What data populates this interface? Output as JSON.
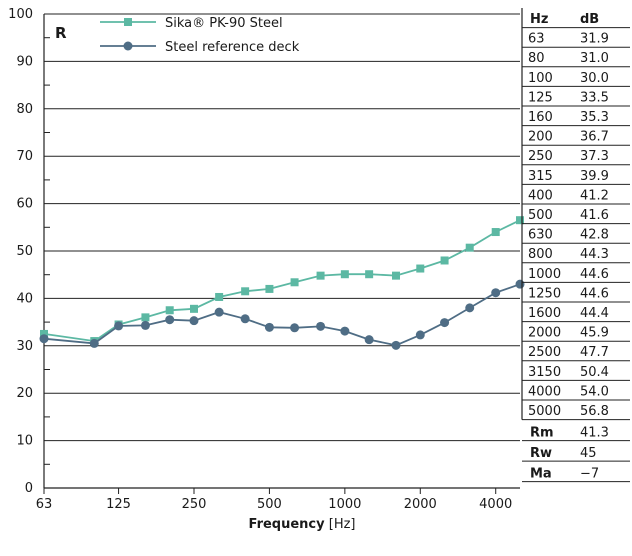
{
  "chart_data": {
    "type": "line",
    "y_axis_label": "R",
    "xlabel_bold": "Frequency",
    "xlabel_unit": " [Hz]",
    "ylim": [
      0,
      100
    ],
    "y_ticks": [
      "0",
      "10",
      "20",
      "30",
      "40",
      "50",
      "60",
      "70",
      "80",
      "90",
      "100"
    ],
    "x_tick_labels": [
      "63",
      "125",
      "250",
      "500",
      "1000",
      "2000",
      "4000"
    ],
    "x": [
      63,
      100,
      125,
      160,
      200,
      250,
      315,
      400,
      500,
      630,
      800,
      1000,
      1250,
      1600,
      2000,
      2500,
      3150,
      4000,
      5000
    ],
    "grid": "horizontal",
    "legend_position": "top-left",
    "series": [
      {
        "name": "Sika® PK-90 Steel",
        "color": "#5cb8a3",
        "marker": "square",
        "values": [
          32.5,
          31.0,
          34.5,
          36.0,
          37.5,
          37.8,
          40.3,
          41.5,
          42.0,
          43.4,
          44.8,
          45.1,
          45.1,
          44.8,
          46.3,
          48.0,
          50.7,
          54.0,
          56.5
        ]
      },
      {
        "name": "Steel reference deck",
        "color": "#4f6d85",
        "marker": "circle",
        "values": [
          31.5,
          30.5,
          34.2,
          34.3,
          35.5,
          35.3,
          37.1,
          35.7,
          33.9,
          33.8,
          34.1,
          33.1,
          31.3,
          30.1,
          32.3,
          34.9,
          38.0,
          41.2,
          43.0
        ]
      }
    ],
    "table": {
      "headers": [
        "Hz",
        "dB"
      ],
      "rows": [
        [
          "63",
          "31.9"
        ],
        [
          "80",
          "31.0"
        ],
        [
          "100",
          "30.0"
        ],
        [
          "125",
          "33.5"
        ],
        [
          "160",
          "35.3"
        ],
        [
          "200",
          "36.7"
        ],
        [
          "250",
          "37.3"
        ],
        [
          "315",
          "39.9"
        ],
        [
          "400",
          "41.2"
        ],
        [
          "500",
          "41.6"
        ],
        [
          "630",
          "42.8"
        ],
        [
          "800",
          "44.3"
        ],
        [
          "1000",
          "44.6"
        ],
        [
          "1250",
          "44.6"
        ],
        [
          "1600",
          "44.4"
        ],
        [
          "2000",
          "45.9"
        ],
        [
          "2500",
          "47.7"
        ],
        [
          "3150",
          "50.4"
        ],
        [
          "4000",
          "54.0"
        ],
        [
          "5000",
          "56.8"
        ]
      ],
      "summary": [
        [
          "Rm",
          "41.3"
        ],
        [
          "Rw",
          "45"
        ],
        [
          "Ma",
          "−7"
        ]
      ]
    }
  }
}
